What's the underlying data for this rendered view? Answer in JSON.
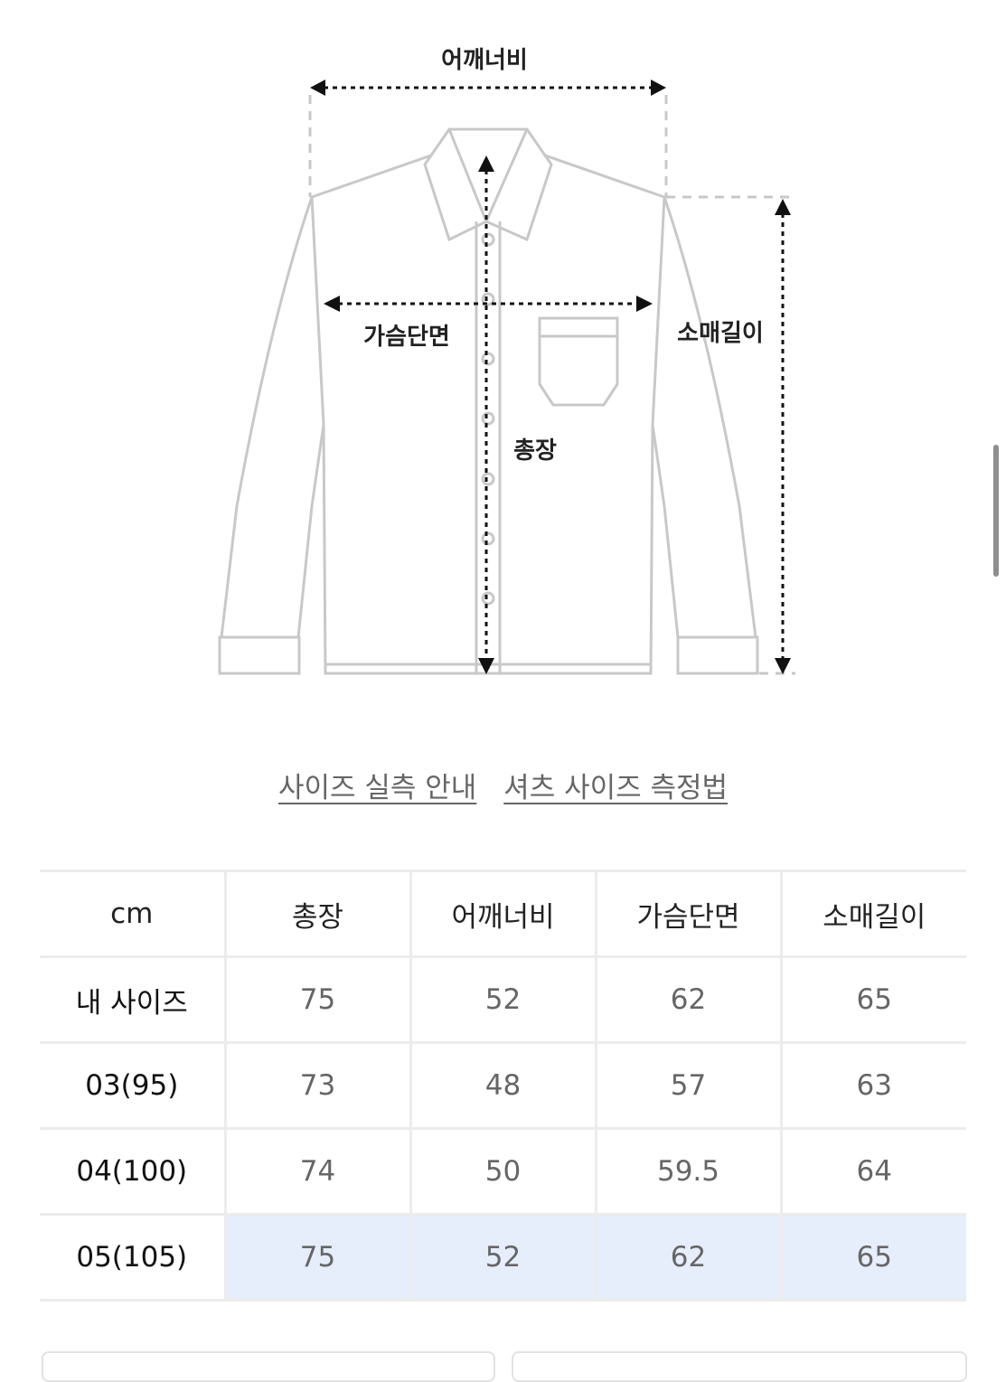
{
  "diagram": {
    "labels": {
      "shoulder": "어깨너비",
      "chest": "가슴단면",
      "length": "총장",
      "sleeve": "소매길이"
    }
  },
  "links": [
    "사이즈 실측 안내",
    "셔츠 사이즈 측정법"
  ],
  "table": {
    "headers": [
      "cm",
      "총장",
      "어깨너비",
      "가슴단면",
      "소매길이"
    ],
    "rows": [
      [
        "내 사이즈",
        "75",
        "52",
        "62",
        "65"
      ],
      [
        "03(95)",
        "73",
        "48",
        "57",
        "63"
      ],
      [
        "04(100)",
        "74",
        "50",
        "59.5",
        "64"
      ],
      [
        "05(105)",
        "75",
        "52",
        "62",
        "65"
      ]
    ],
    "highlight_color": "#e6eefc"
  }
}
